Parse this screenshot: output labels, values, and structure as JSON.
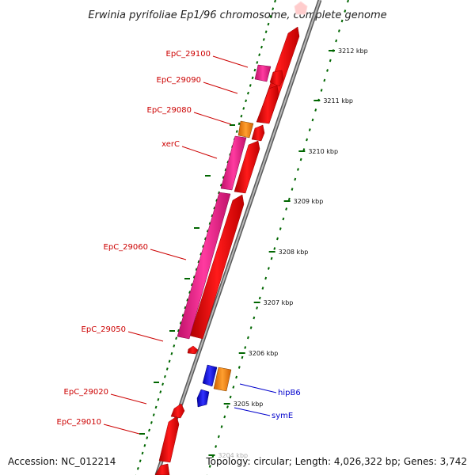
{
  "title": "Erwinia pyrifoliae Ep1/96 chromosome, complete genome",
  "footer": {
    "accession": "Accession: NC_012214",
    "info": "Topology: circular; Length: 4,026,322 bp; Genes: 3,742"
  },
  "ticks": [
    {
      "label": "3212 kbp"
    },
    {
      "label": "3211 kbp"
    },
    {
      "label": "3210 kbp"
    },
    {
      "label": "3209 kbp"
    },
    {
      "label": "3208 kbp"
    },
    {
      "label": "3207 kbp"
    },
    {
      "label": "3206 kbp"
    },
    {
      "label": "3205 kbp"
    },
    {
      "label": "3204 kbp"
    }
  ],
  "genes": [
    {
      "name": "EpC_29100",
      "strand": "minus"
    },
    {
      "name": "EpC_29090",
      "strand": "minus"
    },
    {
      "name": "EpC_29080",
      "strand": "minus"
    },
    {
      "name": "xerC",
      "strand": "minus"
    },
    {
      "name": "EpC_29060",
      "strand": "minus"
    },
    {
      "name": "EpC_29050",
      "strand": "minus"
    },
    {
      "name": "EpC_29020",
      "strand": "minus"
    },
    {
      "name": "EpC_29010",
      "strand": "minus"
    },
    {
      "name": "hipB6",
      "strand": "plus"
    },
    {
      "name": "symE",
      "strand": "plus"
    }
  ],
  "colors": {
    "cds": "#ff0000",
    "gene_pink": "#ee2288",
    "gene_orange": "#ff8800",
    "gene_blue": "#0000ff",
    "backbone": "#888888",
    "ticks": "#006600",
    "label_red": "#cc0000",
    "label_blue": "#0000cc"
  }
}
